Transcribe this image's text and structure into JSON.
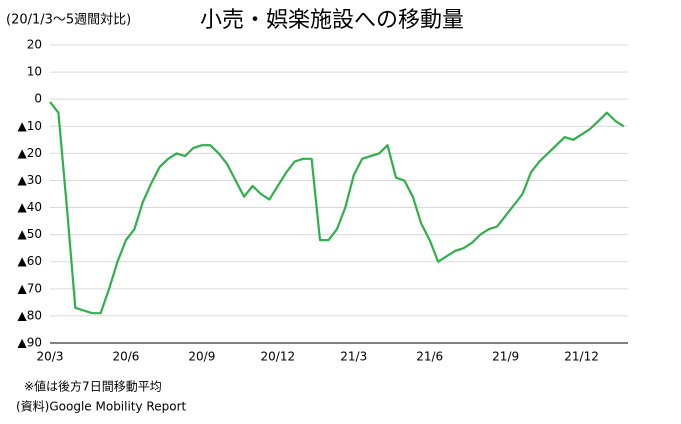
{
  "chart_data": {
    "type": "line",
    "subtitle": "(20/1/3～5週間対比)",
    "title": "小売・娯楽施設への移動量",
    "categories": [
      "20/3",
      null,
      null,
      null,
      null,
      null,
      null,
      null,
      null,
      "20/6",
      null,
      null,
      null,
      null,
      null,
      null,
      null,
      null,
      "20/9",
      null,
      null,
      null,
      null,
      null,
      null,
      null,
      null,
      "20/12",
      null,
      null,
      null,
      null,
      null,
      null,
      null,
      null,
      "21/3",
      null,
      null,
      null,
      null,
      null,
      null,
      null,
      null,
      "21/6",
      null,
      null,
      null,
      null,
      null,
      null,
      null,
      null,
      "21/9",
      null,
      null,
      null,
      null,
      null,
      null,
      null,
      null,
      "21/12",
      null,
      null,
      null,
      null,
      null
    ],
    "values": [
      -1,
      -5,
      -40,
      -77,
      -78,
      -79,
      -79,
      -70,
      -60,
      -52,
      -48,
      -38,
      -31,
      -25,
      -22,
      -20,
      -21,
      -18,
      -17,
      -17,
      -20,
      -24,
      -30,
      -36,
      -32,
      -35,
      -37,
      -32,
      -27,
      -23,
      -22,
      -22,
      -52,
      -52,
      -48,
      -40,
      -28,
      -22,
      -21,
      -20,
      -17,
      -29,
      -30,
      -36,
      -46,
      -52,
      -60,
      -58,
      -56,
      -55,
      -53,
      -50,
      -48,
      -47,
      -43,
      -39,
      -35,
      -27,
      -23,
      -20,
      -17,
      -14,
      -15,
      -13,
      -11,
      -8,
      -5,
      -8,
      -10
    ],
    "color": "#2eb04b",
    "ylim": [
      -90,
      20
    ],
    "yticks": [
      20,
      10,
      0,
      {
        "value": -10,
        "label": "▲10"
      },
      {
        "value": -20,
        "label": "▲20"
      },
      {
        "value": -30,
        "label": "▲30"
      },
      {
        "value": -40,
        "label": "▲40"
      },
      {
        "value": -50,
        "label": "▲50"
      },
      {
        "value": -60,
        "label": "▲60"
      },
      {
        "value": -70,
        "label": "▲70"
      },
      {
        "value": -80,
        "label": "▲80"
      },
      {
        "value": -90,
        "label": "▲90"
      }
    ],
    "grid": true,
    "notes": [
      "※値は後方7日間移動平均",
      "(資料)Google Mobility Report"
    ]
  }
}
